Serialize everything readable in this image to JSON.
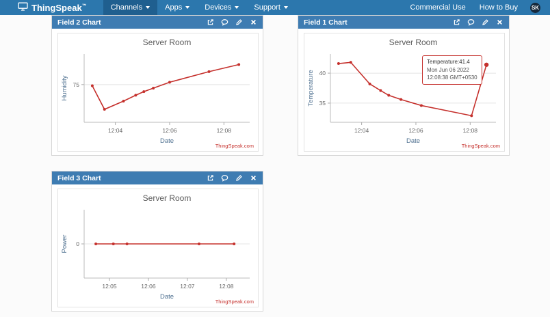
{
  "navbar": {
    "brand": "ThingSpeak",
    "brand_tm": "™",
    "items": [
      {
        "label": "Channels",
        "active": true
      },
      {
        "label": "Apps",
        "active": false
      },
      {
        "label": "Devices",
        "active": false
      },
      {
        "label": "Support",
        "active": false
      }
    ],
    "right_items": [
      {
        "label": "Commercial Use"
      },
      {
        "label": "How to Buy"
      }
    ],
    "avatar": "SK"
  },
  "chart_data": [
    {
      "id": "field2",
      "panel_title": "Field 2 Chart",
      "type": "line",
      "title": "Server Room",
      "ylabel": "Humidity",
      "xlabel": "Date",
      "attribution": "ThingSpeak.com",
      "line_color": "#c5302c",
      "x": [
        3.15,
        3.6,
        4.3,
        4.75,
        5.05,
        5.4,
        6.0,
        7.45,
        8.55
      ],
      "y": [
        74.5,
        64.5,
        68,
        70.5,
        72,
        73.5,
        76,
        80.5,
        83.5
      ],
      "xlim": [
        2.85,
        8.95
      ],
      "ylim": [
        59,
        88
      ],
      "yticks": [
        {
          "v": 75,
          "label": "75"
        }
      ],
      "xticks": [
        {
          "v": 4,
          "label": "12:04"
        },
        {
          "v": 6,
          "label": "12:06"
        },
        {
          "v": 8,
          "label": "12:08"
        }
      ]
    },
    {
      "id": "field1",
      "panel_title": "Field 1 Chart",
      "type": "line",
      "title": "Server Room",
      "ylabel": "Temperature",
      "xlabel": "Date",
      "attribution": "ThingSpeak.com",
      "line_color": "#c5302c",
      "highlight_last": true,
      "x": [
        3.15,
        3.6,
        4.3,
        4.7,
        5.0,
        5.45,
        6.2,
        8.05,
        8.6
      ],
      "y": [
        41.6,
        41.8,
        38.2,
        37.1,
        36.3,
        35.6,
        34.6,
        32.9,
        41.4
      ],
      "xlim": [
        2.85,
        8.95
      ],
      "ylim": [
        31.8,
        43.2
      ],
      "yticks": [
        {
          "v": 40,
          "label": "40"
        },
        {
          "v": 35,
          "label": "35"
        }
      ],
      "xticks": [
        {
          "v": 4,
          "label": "12:04"
        },
        {
          "v": 6,
          "label": "12:06"
        },
        {
          "v": 8,
          "label": "12:08"
        }
      ],
      "tooltip": {
        "line1": "Temperature:41.4",
        "line2": "Mon Jun 06 2022",
        "line3": "12:08:38 GMT+0530"
      }
    },
    {
      "id": "field3",
      "panel_title": "Field 3 Chart",
      "type": "line",
      "title": "Server Room",
      "ylabel": "Power",
      "xlabel": "Date",
      "attribution": "ThingSpeak.com",
      "line_color": "#c5302c",
      "x": [
        4.65,
        5.1,
        5.45,
        7.3,
        8.2
      ],
      "y": [
        0,
        0,
        0,
        0,
        0
      ],
      "xlim": [
        4.35,
        8.6
      ],
      "ylim": [
        -3,
        3
      ],
      "yticks": [
        {
          "v": 0,
          "label": "0"
        }
      ],
      "xticks": [
        {
          "v": 5,
          "label": "12:05"
        },
        {
          "v": 6,
          "label": "12:06"
        },
        {
          "v": 7,
          "label": "12:07"
        },
        {
          "v": 8,
          "label": "12:08"
        }
      ]
    }
  ]
}
